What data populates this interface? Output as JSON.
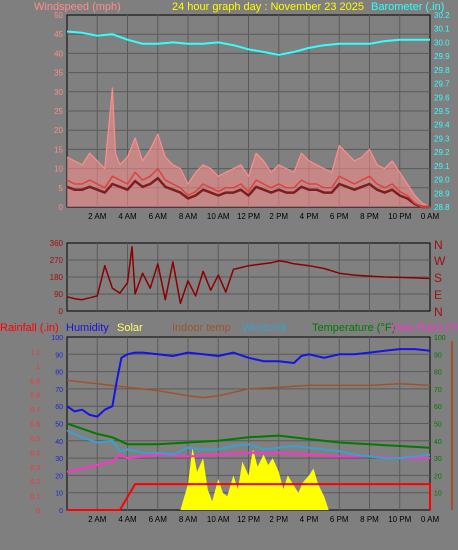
{
  "header": {
    "wind_label": "Windspeed (mph)",
    "title": "24 hour graph day : November 23 2025",
    "baro_label": "Barometer (.in)"
  },
  "direction_labels": [
    "N",
    "W",
    "S",
    "E",
    "N"
  ],
  "bottom_legend": {
    "rain": "Rainfall (.in)",
    "humidity": "Humidity",
    "solar": "Solar",
    "indoor": "Indoor temp",
    "windchill": "Windchill",
    "temperature": "Temperature (°F)",
    "dewpoint": "Dew Point (°F"
  },
  "colors": {
    "background": "#7f7f7f",
    "plot_bg": "#808080",
    "grid": "#5a5a5a",
    "wind_gust": "#ff8c8c",
    "wind_avg": "#e04040",
    "wind_dark": "#7a2020",
    "barometer": "#33ffff",
    "direction": "#8b0000",
    "rain": "#ff0000",
    "humidity": "#1414e6",
    "solar": "#ffff00",
    "indoor": "#a0522d",
    "windchill": "#3aa0d0",
    "temperature": "#007a00",
    "dewpoint": "#ff33cc"
  },
  "chart_data": [
    {
      "type": "line",
      "title": "24 hour graph day : November 23 2025",
      "x_ticks": [
        "2 AM",
        "4 AM",
        "6 AM",
        "8 AM",
        "10 AM",
        "12 PM",
        "2 PM",
        "4 PM",
        "6 PM",
        "8 PM",
        "10 PM",
        "0 AM"
      ],
      "x_hours": [
        0,
        24
      ],
      "y_left": {
        "label": "Windspeed (mph)",
        "range": [
          0,
          50
        ],
        "ticks": [
          0,
          5,
          10,
          15,
          20,
          25,
          30,
          35,
          40,
          45,
          50
        ]
      },
      "y_right": {
        "label": "Barometer (.in)",
        "range": [
          28.8,
          30.2
        ],
        "ticks": [
          28.8,
          28.9,
          29.0,
          29.1,
          29.2,
          29.3,
          29.4,
          29.5,
          29.6,
          29.7,
          29.8,
          29.9,
          30.0,
          30.1,
          30.2
        ]
      },
      "series": [
        {
          "name": "Barometer",
          "axis": "right",
          "hours": [
            0,
            1,
            2,
            3,
            4,
            5,
            6,
            7,
            8,
            9,
            10,
            11,
            12,
            13,
            14,
            15,
            16,
            17,
            18,
            19,
            20,
            21,
            22,
            23,
            24
          ],
          "values": [
            30.08,
            30.07,
            30.05,
            30.06,
            30.02,
            29.99,
            29.99,
            30.0,
            29.99,
            29.99,
            30.0,
            29.98,
            29.95,
            29.93,
            29.91,
            29.93,
            29.96,
            29.98,
            29.99,
            29.99,
            29.99,
            30.01,
            30.02,
            30.02,
            30.02
          ]
        },
        {
          "name": "Wind gust",
          "axis": "left",
          "hours": [
            0,
            0.5,
            1,
            1.5,
            2,
            2.5,
            3,
            3.2,
            3.5,
            4,
            4.5,
            5,
            5.5,
            6,
            6.5,
            7,
            7.5,
            8,
            8.5,
            9,
            9.5,
            10,
            10.5,
            11,
            11.5,
            12,
            12.5,
            13,
            13.5,
            14,
            14.5,
            15,
            15.5,
            16,
            16.5,
            17,
            17.5,
            18,
            18.5,
            19,
            19.5,
            20,
            20.5,
            21,
            21.5,
            22,
            22.5,
            23,
            23.5,
            24
          ],
          "values": [
            13,
            12,
            11,
            14,
            12,
            10,
            31,
            14,
            11,
            13,
            18,
            12,
            15,
            19,
            13,
            11,
            10,
            6,
            9,
            11,
            10,
            8,
            9,
            10,
            11,
            8,
            14,
            12,
            9,
            11,
            10,
            9,
            14,
            12,
            11,
            10,
            9,
            16,
            14,
            12,
            13,
            15,
            11,
            10,
            12,
            9,
            6,
            3,
            1,
            0
          ]
        },
        {
          "name": "Wind avg",
          "axis": "left",
          "hours": [
            0,
            0.5,
            1,
            1.5,
            2,
            2.5,
            3,
            3.5,
            4,
            4.5,
            5,
            5.5,
            6,
            6.5,
            7,
            7.5,
            8,
            8.5,
            9,
            9.5,
            10,
            10.5,
            11,
            11.5,
            12,
            12.5,
            13,
            13.5,
            14,
            14.5,
            15,
            15.5,
            16,
            16.5,
            17,
            17.5,
            18,
            18.5,
            19,
            19.5,
            20,
            20.5,
            21,
            21.5,
            22,
            22.5,
            23,
            23.5,
            24
          ],
          "values": [
            7,
            6,
            6,
            7,
            6,
            5,
            8,
            7,
            6,
            9,
            7,
            8,
            10,
            7,
            6,
            5,
            3,
            4,
            6,
            5,
            4,
            5,
            5,
            6,
            4,
            7,
            6,
            5,
            6,
            5,
            5,
            7,
            6,
            6,
            5,
            5,
            8,
            7,
            6,
            7,
            8,
            6,
            5,
            6,
            4,
            3,
            1,
            0,
            0
          ]
        }
      ]
    },
    {
      "type": "line",
      "title": "Wind direction",
      "x_hours": [
        0,
        24
      ],
      "y_range": [
        0,
        360
      ],
      "y_ticks": [
        0,
        90,
        180,
        270,
        360
      ],
      "series": [
        {
          "name": "Wind direction",
          "hours": [
            0,
            0.5,
            1,
            1.5,
            2,
            2.5,
            3,
            3.5,
            4,
            4.3,
            4.5,
            5,
            5.5,
            6,
            6.5,
            7,
            7.5,
            8,
            8.5,
            9,
            9.5,
            10,
            10.5,
            11,
            11.5,
            12,
            12.5,
            13,
            13.5,
            14,
            14.5,
            15,
            16,
            17,
            18,
            19,
            20,
            21,
            22,
            23,
            24
          ],
          "values": [
            75,
            65,
            60,
            70,
            80,
            240,
            120,
            95,
            150,
            340,
            90,
            200,
            120,
            250,
            60,
            260,
            40,
            160,
            80,
            210,
            110,
            190,
            100,
            220,
            230,
            240,
            245,
            250,
            255,
            265,
            260,
            250,
            240,
            225,
            200,
            190,
            185,
            180,
            178,
            175,
            172
          ]
        }
      ]
    },
    {
      "type": "line",
      "title": "Rain, humidity, solar and temperatures",
      "x_ticks": [
        "2 AM",
        "4 AM",
        "6 AM",
        "8 AM",
        "10 AM",
        "12 PM",
        "2 PM",
        "4 PM",
        "6 PM",
        "8 PM",
        "10 PM",
        "0 AM"
      ],
      "x_hours": [
        0,
        24
      ],
      "y_left": {
        "label": "Rainfall (.in)",
        "range": [
          0,
          1.2
        ],
        "ticks": [
          0,
          0.1,
          0.2,
          0.3,
          0.4,
          0.5,
          0.6,
          0.7,
          0.8,
          0.9,
          1,
          1.1
        ]
      },
      "y_left_inner": {
        "label": "Humidity",
        "range": [
          0,
          100
        ],
        "ticks": [
          0,
          10,
          20,
          30,
          40,
          50,
          60,
          70,
          80,
          90,
          100
        ]
      },
      "y_right": {
        "label": "Temperature (°F)",
        "range": [
          0,
          100
        ],
        "ticks": [
          10,
          20,
          30,
          40,
          50,
          60,
          70,
          80,
          90,
          100
        ]
      },
      "series": [
        {
          "name": "Humidity",
          "scale": "humidity",
          "hours": [
            0,
            0.5,
            1,
            1.5,
            2,
            2.5,
            3,
            3.3,
            3.6,
            4,
            4.5,
            5,
            6,
            7,
            8,
            9,
            10,
            11,
            12,
            13,
            14,
            15,
            15.5,
            16,
            17,
            18,
            19,
            20,
            21,
            22,
            23,
            24
          ],
          "values": [
            60,
            57,
            58,
            55,
            54,
            58,
            60,
            75,
            88,
            90,
            91,
            91,
            90,
            89,
            91,
            90,
            89,
            91,
            88,
            86,
            86,
            85,
            89,
            90,
            88,
            90,
            90,
            91,
            92,
            93,
            93,
            92
          ]
        },
        {
          "name": "Indoor temp",
          "scale": "temperature",
          "hours": [
            0,
            2,
            4,
            6,
            8,
            9,
            10,
            12,
            14,
            16,
            18,
            20,
            22,
            24
          ],
          "values": [
            75,
            73,
            71,
            69,
            66,
            65,
            66,
            70,
            71,
            72,
            72,
            72,
            73,
            72
          ]
        },
        {
          "name": "Temperature",
          "scale": "temperature",
          "hours": [
            0,
            1,
            2,
            3,
            4,
            6,
            8,
            10,
            12,
            14,
            16,
            18,
            20,
            22,
            24
          ],
          "values": [
            50,
            47,
            44,
            42,
            38,
            38,
            39,
            40,
            42,
            43,
            41,
            39,
            38,
            37,
            36
          ]
        },
        {
          "name": "Windchill",
          "scale": "temperature",
          "hours": [
            0,
            1,
            2,
            3,
            3.5,
            4,
            5,
            6,
            7,
            8,
            9,
            10,
            11,
            12,
            13,
            14,
            15,
            16,
            17,
            18,
            19,
            20,
            21,
            22,
            23,
            24
          ],
          "values": [
            46,
            42,
            39,
            40,
            34,
            35,
            33,
            33,
            32,
            36,
            35,
            35,
            37,
            38,
            35,
            36,
            37,
            36,
            35,
            34,
            32,
            31,
            30,
            30,
            31,
            32
          ]
        },
        {
          "name": "Dew Point",
          "scale": "temperature",
          "hours": [
            0,
            1,
            2,
            3,
            3.5,
            4,
            5,
            6,
            8,
            10,
            12,
            14,
            16,
            18,
            20,
            22,
            24
          ],
          "values": [
            22,
            24,
            26,
            28,
            32,
            30,
            31,
            32,
            31,
            32,
            33,
            33,
            32,
            31,
            31,
            30,
            30
          ]
        },
        {
          "name": "Solar",
          "hours": [
            0,
            7.5,
            8,
            8.3,
            8.6,
            9,
            9.3,
            9.6,
            10,
            10.3,
            10.6,
            11,
            11.3,
            11.6,
            12,
            12.3,
            12.6,
            13,
            13.3,
            13.6,
            14,
            14.3,
            14.6,
            15,
            15.3,
            15.6,
            16,
            16.3,
            16.6,
            17,
            17.3,
            24
          ],
          "values": [
            0,
            0,
            15,
            36,
            22,
            30,
            12,
            5,
            18,
            10,
            8,
            20,
            12,
            28,
            20,
            35,
            25,
            32,
            26,
            30,
            22,
            12,
            20,
            14,
            10,
            16,
            20,
            24,
            15,
            8,
            0,
            0
          ],
          "scale": "humidity"
        },
        {
          "name": "Rainfall",
          "scale": "rain",
          "hours": [
            0,
            3.5,
            4.5,
            7,
            10,
            14,
            18,
            22,
            24
          ],
          "values": [
            0,
            0,
            0.18,
            0.18,
            0.18,
            0.18,
            0.18,
            0.18,
            0.18
          ]
        }
      ]
    }
  ]
}
